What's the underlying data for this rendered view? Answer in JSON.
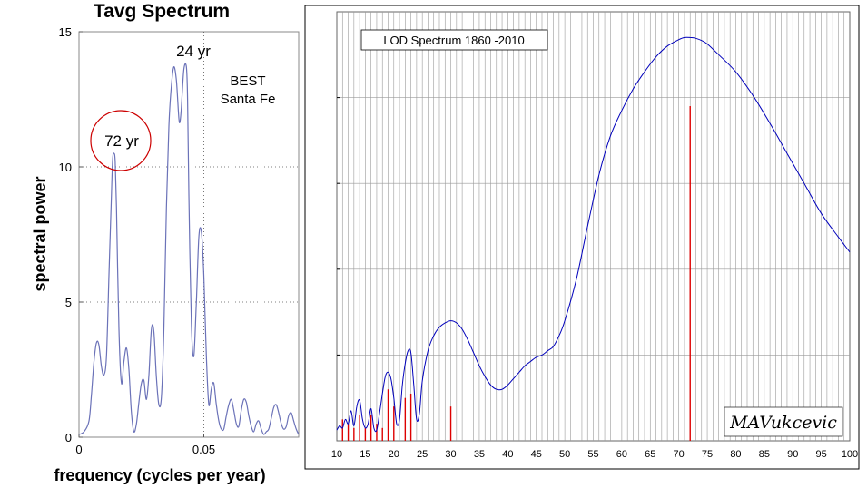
{
  "chart_data": [
    {
      "type": "line",
      "title": "Tavg Spectrum",
      "xlabel": "frequency (cycles per year)",
      "ylabel": "spectral power",
      "xlim": [
        0,
        0.088
      ],
      "ylim": [
        0,
        15
      ],
      "x_ticks": [
        0,
        0.05
      ],
      "x_tick_labels": [
        "0",
        "0.05"
      ],
      "y_ticks": [
        0,
        5,
        10,
        15
      ],
      "y_tick_labels": [
        "0",
        "5",
        "10",
        "15"
      ],
      "grid": true,
      "line_color": "#6b72b8",
      "annotations": [
        {
          "text": "72 yr",
          "circled": true,
          "circle_color": "#cc0000"
        },
        {
          "text": "24 yr"
        },
        {
          "text": "BEST"
        },
        {
          "text": "Santa Fe"
        }
      ],
      "series": [
        {
          "x": [
            0,
            0.002,
            0.004,
            0.005,
            0.006,
            0.007,
            0.008,
            0.009,
            0.01,
            0.011,
            0.012,
            0.013,
            0.0135,
            0.014,
            0.0145,
            0.015,
            0.016,
            0.017,
            0.018,
            0.019,
            0.02,
            0.021,
            0.022,
            0.023,
            0.024,
            0.025,
            0.026,
            0.027,
            0.028,
            0.029,
            0.03,
            0.031,
            0.032,
            0.033,
            0.034,
            0.035,
            0.036,
            0.037,
            0.038,
            0.039,
            0.04,
            0.0405,
            0.041,
            0.042,
            0.043,
            0.0435,
            0.044,
            0.045,
            0.046,
            0.047,
            0.048,
            0.049,
            0.05,
            0.051,
            0.052,
            0.053,
            0.054,
            0.055,
            0.056,
            0.057,
            0.058,
            0.059,
            0.06,
            0.061,
            0.062,
            0.063,
            0.064,
            0.065,
            0.066,
            0.067,
            0.068,
            0.069,
            0.07,
            0.071,
            0.072,
            0.073,
            0.074,
            0.075,
            0.076,
            0.077,
            0.078,
            0.079,
            0.08,
            0.081,
            0.082,
            0.083,
            0.084,
            0.085,
            0.086,
            0.087,
            0.088
          ],
          "values": [
            0.1,
            0.2,
            0.6,
            1.6,
            2.8,
            3.5,
            3.4,
            2.6,
            2.3,
            3.0,
            6.0,
            9.0,
            10.3,
            10.5,
            10.2,
            8.5,
            4.0,
            2.0,
            2.8,
            3.3,
            2.5,
            0.9,
            0.2,
            0.5,
            1.3,
            2.0,
            2.1,
            1.4,
            2.3,
            4.0,
            3.9,
            2.2,
            1.2,
            1.5,
            4.0,
            8.5,
            11.5,
            13.0,
            13.7,
            13.2,
            11.8,
            11.7,
            12.2,
            13.6,
            13.7,
            12.5,
            9.0,
            4.2,
            3.0,
            5.0,
            7.4,
            7.6,
            6.0,
            3.0,
            1.2,
            1.8,
            2.0,
            1.2,
            0.6,
            0.3,
            0.3,
            0.8,
            1.2,
            1.4,
            1.0,
            0.5,
            0.4,
            1.0,
            1.4,
            1.3,
            0.8,
            0.4,
            0.2,
            0.5,
            0.6,
            0.3,
            0.1,
            0.2,
            0.3,
            0.7,
            1.1,
            1.2,
            0.9,
            0.5,
            0.3,
            0.4,
            0.8,
            0.9,
            0.6,
            0.3,
            0.1
          ]
        }
      ]
    },
    {
      "type": "line",
      "title": "LOD Spectrum 1860 -2010",
      "watermark": "MAVukcevic",
      "xlim": [
        10,
        100
      ],
      "ylim": [
        0,
        100
      ],
      "x_ticks": [
        10,
        15,
        20,
        25,
        30,
        35,
        40,
        45,
        50,
        55,
        60,
        65,
        70,
        75,
        80,
        85,
        90,
        95,
        100
      ],
      "x_tick_labels": [
        "10",
        "15",
        "20",
        "25",
        "30",
        "35",
        "40",
        "45",
        "50",
        "55",
        "60",
        "65",
        "70",
        "75",
        "80",
        "85",
        "90",
        "95",
        "100"
      ],
      "grid": true,
      "grid_x_step": 1,
      "line_color": "#0000bb",
      "bar_color": "#dd0000",
      "series": [
        {
          "x": [
            10,
            10.5,
            11,
            11.5,
            12,
            12.5,
            13,
            13.5,
            14,
            14.5,
            15,
            15.5,
            16,
            16.5,
            17,
            17.5,
            18,
            18.5,
            19,
            19.5,
            20,
            20.5,
            21,
            21.5,
            22,
            22.5,
            23,
            23.5,
            24,
            24.5,
            25,
            26,
            27,
            28,
            29,
            30,
            31,
            32,
            33,
            34,
            35,
            36,
            37,
            38,
            39,
            40,
            41,
            42,
            43,
            44,
            45,
            46,
            47,
            48,
            49,
            50,
            52,
            54,
            56,
            58,
            60,
            62,
            64,
            66,
            68,
            70,
            71,
            72,
            73,
            74,
            75,
            77,
            80,
            83,
            86,
            89,
            92,
            95,
            98,
            100
          ],
          "values": [
            2.5,
            3.5,
            3.0,
            5.0,
            4.0,
            7.0,
            3.5,
            8.0,
            9.5,
            5.0,
            3.0,
            4.0,
            7.5,
            3.0,
            2.5,
            6.5,
            11.0,
            15.0,
            16.0,
            14.5,
            10.0,
            4.0,
            5.0,
            13.0,
            18.0,
            21.0,
            20.5,
            13.0,
            5.0,
            6.5,
            14.0,
            21.0,
            24.5,
            26.5,
            27.5,
            28.0,
            27.5,
            26.0,
            23.5,
            20.5,
            17.5,
            15.0,
            13.0,
            12.0,
            12.0,
            13.0,
            14.5,
            16.0,
            17.5,
            18.5,
            19.5,
            20.0,
            21.0,
            22.0,
            24.5,
            28.0,
            37.5,
            50.0,
            62.0,
            71.0,
            77.0,
            82.0,
            86.0,
            89.5,
            92.0,
            93.5,
            94.0,
            94.0,
            93.8,
            93.3,
            92.5,
            90.0,
            86.0,
            80.5,
            74.0,
            67.0,
            60.0,
            53.0,
            47.5,
            44.0
          ]
        }
      ],
      "bars": {
        "x": [
          11,
          12,
          13,
          14,
          15,
          16,
          17,
          18,
          19,
          20,
          22,
          23,
          30,
          72
        ],
        "values": [
          5,
          4,
          3,
          6,
          3,
          6,
          4,
          3,
          12,
          8,
          10,
          11,
          8,
          78
        ]
      }
    }
  ]
}
